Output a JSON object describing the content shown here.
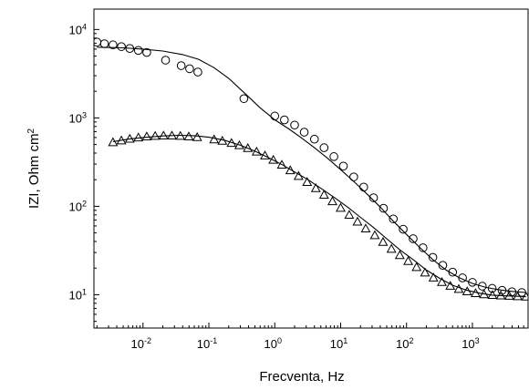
{
  "chart_data": {
    "type": "scatter",
    "title": "",
    "xlabel": "Frecventa, Hz",
    "ylabel": "IZI, Ohm cm",
    "ylabel_superscript": "2",
    "xscale": "log",
    "yscale": "log",
    "xlim": [
      0.0018,
      7000
    ],
    "ylim": [
      4.2,
      17000
    ],
    "x_ticks": [
      {
        "value": 0.01,
        "base": "10",
        "exp": "-2"
      },
      {
        "value": 0.1,
        "base": "10",
        "exp": "-1"
      },
      {
        "value": 1,
        "base": "10",
        "exp": "0"
      },
      {
        "value": 10,
        "base": "10",
        "exp": "1"
      },
      {
        "value": 100,
        "base": "10",
        "exp": "2"
      },
      {
        "value": 1000,
        "base": "10",
        "exp": "3"
      }
    ],
    "y_ticks": [
      {
        "value": 10,
        "base": "10",
        "exp": "1"
      },
      {
        "value": 100,
        "base": "10",
        "exp": "2"
      },
      {
        "value": 1000,
        "base": "10",
        "exp": "3"
      },
      {
        "value": 10000,
        "base": "10",
        "exp": "4"
      }
    ],
    "grid": false,
    "legend": "none",
    "colors": {
      "axis": "#000000",
      "marker": "#000000",
      "fit_line": "#000000"
    },
    "series": [
      {
        "marker": "circle",
        "x": [
          0.002,
          0.0026,
          0.0035,
          0.0047,
          0.0063,
          0.0085,
          0.0114,
          0.022,
          0.038,
          0.051,
          0.068,
          0.34,
          1.0,
          1.4,
          2.0,
          2.8,
          4.0,
          5.6,
          7.9,
          11,
          15.8,
          22.4,
          31.6,
          44.7,
          63,
          89,
          126,
          178,
          251,
          355,
          501,
          708,
          1000,
          1413,
          1995,
          2818,
          3981,
          5623
        ],
        "y": [
          7200,
          6900,
          6700,
          6400,
          6100,
          5800,
          5500,
          4500,
          3900,
          3600,
          3300,
          1650,
          1050,
          950,
          830,
          690,
          575,
          460,
          365,
          285,
          215,
          165,
          125,
          95,
          72,
          55,
          43,
          34,
          26.5,
          21.5,
          18,
          15.5,
          13.8,
          12.5,
          11.8,
          11.2,
          10.8,
          10.6
        ]
      },
      {
        "marker": "triangle",
        "x": [
          0.0035,
          0.0047,
          0.0063,
          0.0085,
          0.0114,
          0.0153,
          0.0205,
          0.0275,
          0.0369,
          0.0495,
          0.0664,
          0.12,
          0.16,
          0.22,
          0.29,
          0.39,
          0.53,
          0.71,
          0.95,
          1.28,
          1.72,
          2.3,
          3.1,
          4.2,
          5.6,
          7.5,
          10,
          13.5,
          18,
          24,
          33,
          44,
          59,
          79,
          106,
          142,
          191,
          256,
          344,
          462,
          620,
          832,
          1117,
          1500,
          2013,
          2700,
          3625,
          4866,
          6530
        ],
        "y": [
          530,
          555,
          580,
          600,
          615,
          625,
          630,
          630,
          625,
          615,
          605,
          570,
          550,
          520,
          490,
          455,
          415,
          375,
          335,
          295,
          255,
          220,
          188,
          160,
          135,
          114,
          96,
          80,
          67,
          56,
          47,
          39.5,
          33,
          28,
          24,
          20.5,
          17.8,
          15.6,
          13.9,
          12.6,
          11.6,
          10.9,
          10.4,
          10.1,
          9.9,
          9.8,
          9.7,
          9.6,
          9.5
        ]
      },
      {
        "marker": "line",
        "x": [
          0.002,
          0.005,
          0.01,
          0.02,
          0.04,
          0.07,
          0.12,
          0.2,
          0.35,
          0.6,
          1,
          1.6,
          2.5,
          4,
          6.3,
          10,
          16,
          25,
          40,
          63,
          100,
          160,
          250,
          400,
          630,
          1000,
          1600,
          2500,
          4000,
          6500
        ],
        "y": [
          6300,
          6200,
          6000,
          5700,
          5200,
          4600,
          3700,
          2800,
          1900,
          1300,
          950,
          760,
          600,
          460,
          350,
          260,
          190,
          138,
          98,
          68,
          48,
          34,
          25,
          19,
          15.6,
          13.4,
          12.1,
          11.4,
          10.9,
          10.6
        ]
      },
      {
        "marker": "line",
        "x": [
          0.0035,
          0.006,
          0.01,
          0.02,
          0.035,
          0.06,
          0.1,
          0.17,
          0.3,
          0.5,
          0.8,
          1.3,
          2,
          3.2,
          5,
          8,
          13,
          20,
          32,
          50,
          80,
          130,
          200,
          320,
          500,
          800,
          1300,
          2000,
          3200,
          5000,
          6500
        ],
        "y": [
          540,
          575,
          600,
          625,
          635,
          630,
          605,
          560,
          490,
          420,
          355,
          295,
          245,
          200,
          160,
          126,
          97,
          75,
          57,
          43,
          32,
          24.5,
          19,
          15.3,
          12.8,
          11.3,
          10.4,
          9.9,
          9.7,
          9.6,
          9.5
        ]
      }
    ]
  }
}
